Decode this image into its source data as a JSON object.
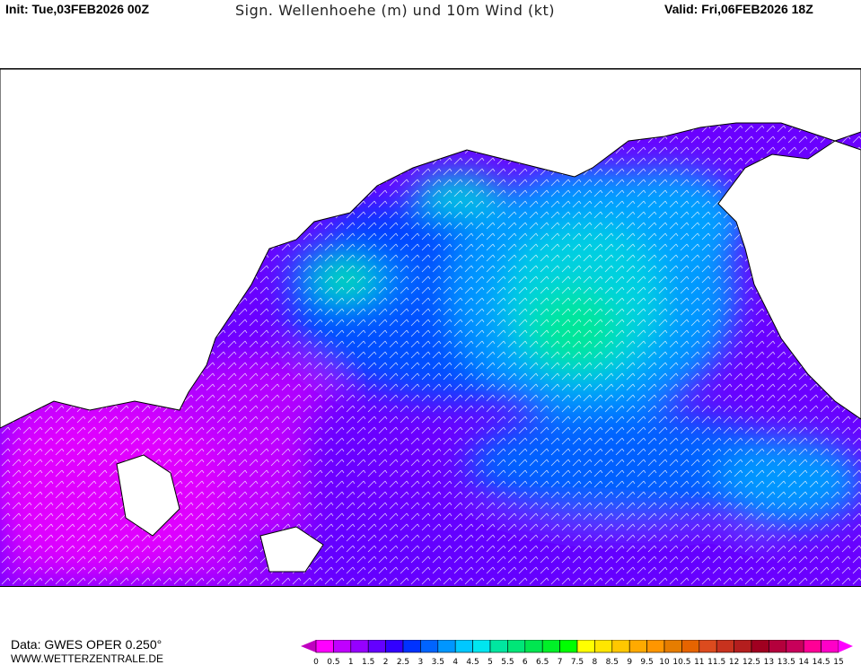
{
  "header": {
    "init": "Init: Tue,03FEB2026 00Z",
    "title": "Sign. Wellenhoehe (m) und 10m Wind (kt)",
    "valid": "Valid: Fri,06FEB2026 18Z"
  },
  "footer": {
    "data_source": "Data: GWES OPER 0.250°",
    "website": "WWW.WETTERZENTRALE.DE"
  },
  "legend": {
    "labels": [
      "0",
      "0.5",
      "1",
      "1.5",
      "2",
      "2.5",
      "3",
      "3.5",
      "4",
      "4.5",
      "5",
      "5.5",
      "6",
      "6.5",
      "7",
      "7.5",
      "8",
      "8.5",
      "9",
      "9.5",
      "10",
      "10.5",
      "11",
      "11.5",
      "12",
      "12.5",
      "13",
      "13.5",
      "14",
      "14.5",
      "15"
    ],
    "colors": [
      "#ff00ff",
      "#c000ff",
      "#9600ff",
      "#6400ff",
      "#3200ff",
      "#0032ff",
      "#0064ff",
      "#0096ff",
      "#00c8ff",
      "#00e6f0",
      "#00e6a0",
      "#00e678",
      "#00e650",
      "#00f028",
      "#00ff00",
      "#ffff00",
      "#ffe600",
      "#ffc800",
      "#ffaa00",
      "#ff9600",
      "#e67d00",
      "#e66400",
      "#dc4b1e",
      "#c8321e",
      "#b41e1e",
      "#a00020",
      "#b4003c",
      "#c8005a",
      "#ff0096",
      "#ff00c8"
    ],
    "under_color": "#c000c0",
    "over_color": "#ff00ff"
  }
}
